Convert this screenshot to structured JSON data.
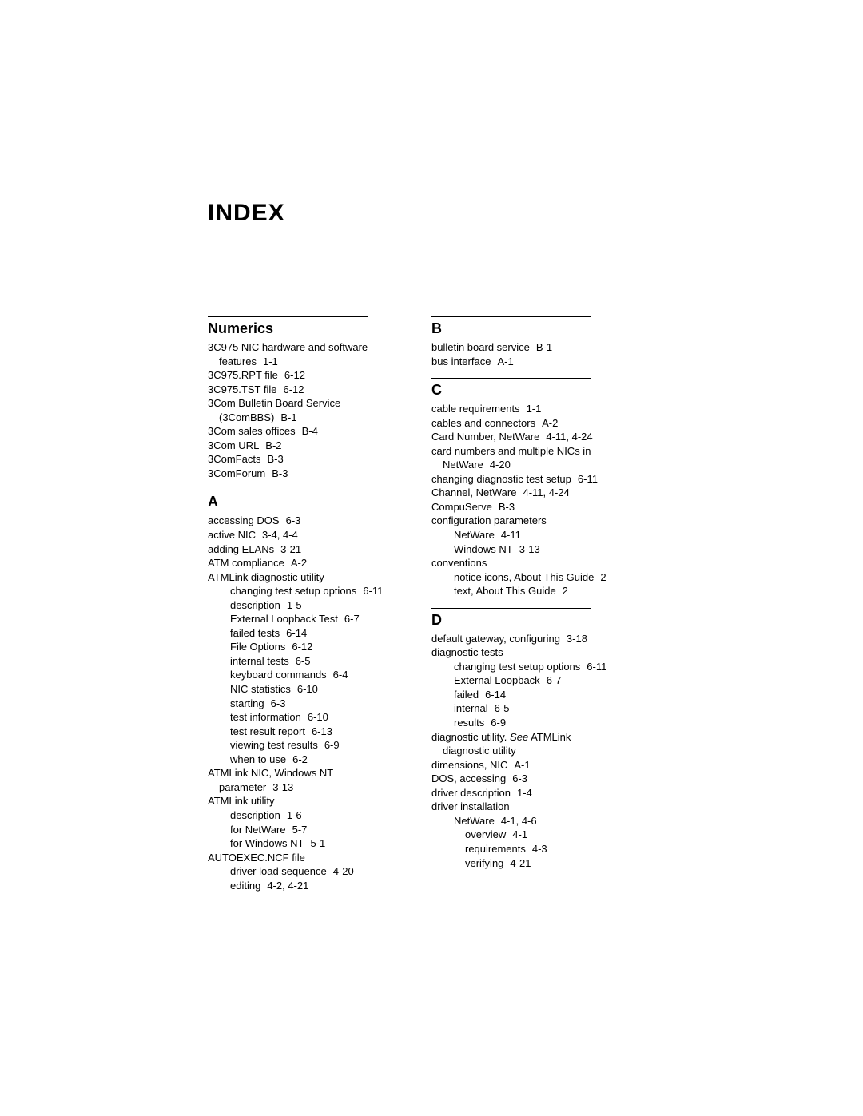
{
  "title": "INDEX",
  "left": [
    {
      "head": "Numerics",
      "entries": [
        {
          "lvl": 0,
          "text": "3C975 NIC hardware and software"
        },
        {
          "lvl": 1,
          "text": "features",
          "ref": "1-1"
        },
        {
          "lvl": 0,
          "text": "3C975.RPT file",
          "ref": "6-12"
        },
        {
          "lvl": 0,
          "text": "3C975.TST file",
          "ref": "6-12"
        },
        {
          "lvl": 0,
          "text": "3Com Bulletin Board Service"
        },
        {
          "lvl": 1,
          "text": "(3ComBBS)",
          "ref": "B-1"
        },
        {
          "lvl": 0,
          "text": "3Com sales offices",
          "ref": "B-4"
        },
        {
          "lvl": 0,
          "text": "3Com URL",
          "ref": "B-2"
        },
        {
          "lvl": 0,
          "text": "3ComFacts",
          "ref": "B-3"
        },
        {
          "lvl": 0,
          "text": "3ComForum",
          "ref": "B-3"
        }
      ]
    },
    {
      "head": "A",
      "entries": [
        {
          "lvl": 0,
          "text": "accessing DOS",
          "ref": "6-3"
        },
        {
          "lvl": 0,
          "text": "active NIC",
          "ref": "3-4, 4-4"
        },
        {
          "lvl": 0,
          "text": "adding ELANs",
          "ref": "3-21"
        },
        {
          "lvl": 0,
          "text": "ATM compliance",
          "ref": "A-2"
        },
        {
          "lvl": 0,
          "text": "ATMLink diagnostic utility"
        },
        {
          "lvl": 2,
          "text": "changing test setup options",
          "ref": "6-11"
        },
        {
          "lvl": 2,
          "text": "description",
          "ref": "1-5"
        },
        {
          "lvl": 2,
          "text": "External Loopback Test",
          "ref": "6-7"
        },
        {
          "lvl": 2,
          "text": "failed tests",
          "ref": "6-14"
        },
        {
          "lvl": 2,
          "text": "File Options",
          "ref": "6-12"
        },
        {
          "lvl": 2,
          "text": "internal tests",
          "ref": "6-5"
        },
        {
          "lvl": 2,
          "text": "keyboard commands",
          "ref": "6-4"
        },
        {
          "lvl": 2,
          "text": "NIC statistics",
          "ref": "6-10"
        },
        {
          "lvl": 2,
          "text": "starting",
          "ref": "6-3"
        },
        {
          "lvl": 2,
          "text": "test information",
          "ref": "6-10"
        },
        {
          "lvl": 2,
          "text": "test result report",
          "ref": "6-13"
        },
        {
          "lvl": 2,
          "text": "viewing test results",
          "ref": "6-9"
        },
        {
          "lvl": 2,
          "text": "when to use",
          "ref": "6-2"
        },
        {
          "lvl": 0,
          "text": "ATMLink NIC, Windows NT"
        },
        {
          "lvl": 1,
          "text": "parameter",
          "ref": "3-13"
        },
        {
          "lvl": 0,
          "text": "ATMLink utility"
        },
        {
          "lvl": 2,
          "text": "description",
          "ref": "1-6"
        },
        {
          "lvl": 2,
          "text": "for NetWare",
          "ref": "5-7"
        },
        {
          "lvl": 2,
          "text": "for Windows NT",
          "ref": "5-1"
        },
        {
          "lvl": 0,
          "text": "AUTOEXEC.NCF file"
        },
        {
          "lvl": 2,
          "text": "driver load sequence",
          "ref": "4-20"
        },
        {
          "lvl": 2,
          "text": "editing",
          "ref": "4-2, 4-21"
        }
      ]
    }
  ],
  "right": [
    {
      "head": "B",
      "entries": [
        {
          "lvl": 0,
          "text": "bulletin board service",
          "ref": "B-1"
        },
        {
          "lvl": 0,
          "text": "bus interface",
          "ref": "A-1"
        }
      ]
    },
    {
      "head": "C",
      "entries": [
        {
          "lvl": 0,
          "text": "cable requirements",
          "ref": "1-1"
        },
        {
          "lvl": 0,
          "text": "cables and connectors",
          "ref": "A-2"
        },
        {
          "lvl": 0,
          "text": "Card Number, NetWare",
          "ref": "4-11, 4-24"
        },
        {
          "lvl": 0,
          "text": "card numbers and multiple NICs in"
        },
        {
          "lvl": 1,
          "text": "NetWare",
          "ref": "4-20"
        },
        {
          "lvl": 0,
          "text": "changing diagnostic test setup",
          "ref": "6-11"
        },
        {
          "lvl": 0,
          "text": "Channel, NetWare",
          "ref": "4-11, 4-24"
        },
        {
          "lvl": 0,
          "text": "CompuServe",
          "ref": "B-3"
        },
        {
          "lvl": 0,
          "text": "configuration parameters"
        },
        {
          "lvl": 2,
          "text": "NetWare",
          "ref": "4-11"
        },
        {
          "lvl": 2,
          "text": "Windows NT",
          "ref": "3-13"
        },
        {
          "lvl": 0,
          "text": "conventions"
        },
        {
          "lvl": 2,
          "text": "notice icons, About This Guide",
          "ref": "2"
        },
        {
          "lvl": 2,
          "text": "text, About This Guide",
          "ref": "2"
        }
      ]
    },
    {
      "head": "D",
      "entries": [
        {
          "lvl": 0,
          "text": "default gateway, configuring",
          "ref": "3-18"
        },
        {
          "lvl": 0,
          "text": "diagnostic tests"
        },
        {
          "lvl": 2,
          "text": "changing test setup options",
          "ref": "6-11"
        },
        {
          "lvl": 2,
          "text": "External Loopback",
          "ref": "6-7"
        },
        {
          "lvl": 2,
          "text": "failed",
          "ref": "6-14"
        },
        {
          "lvl": 2,
          "text": "internal",
          "ref": "6-5"
        },
        {
          "lvl": 2,
          "text": "results",
          "ref": "6-9"
        },
        {
          "lvl": 0,
          "text": "diagnostic utility.",
          "see": "See",
          "after": " ATMLink"
        },
        {
          "lvl": 1,
          "text": "diagnostic utility"
        },
        {
          "lvl": 0,
          "text": "dimensions, NIC",
          "ref": "A-1"
        },
        {
          "lvl": 0,
          "text": "DOS, accessing",
          "ref": "6-3"
        },
        {
          "lvl": 0,
          "text": "driver description",
          "ref": "1-4"
        },
        {
          "lvl": 0,
          "text": "driver installation"
        },
        {
          "lvl": 2,
          "text": "NetWare",
          "ref": "4-1, 4-6"
        },
        {
          "lvl": 3,
          "text": "overview",
          "ref": "4-1"
        },
        {
          "lvl": 3,
          "text": "requirements",
          "ref": "4-3"
        },
        {
          "lvl": 3,
          "text": "verifying",
          "ref": "4-21"
        }
      ]
    }
  ]
}
